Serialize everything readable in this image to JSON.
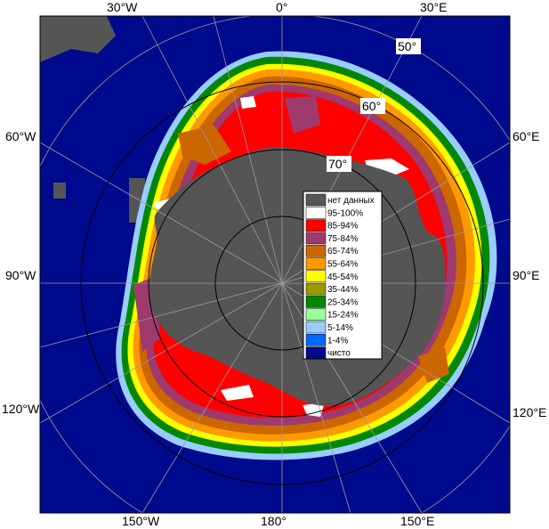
{
  "map": {
    "longitude_labels": {
      "top": [
        "30°W",
        "0°",
        "30°E"
      ],
      "bottom": [
        "150°W",
        "180°",
        "150°E"
      ],
      "left": [
        "60°W",
        "90°W",
        "120°W"
      ],
      "right": [
        "60°E",
        "90°E",
        "120°E"
      ]
    },
    "latitude_labels": [
      "50°",
      "60°",
      "70°"
    ],
    "colors": {
      "ocean": "#000a8c",
      "land": "#555555",
      "grid": "#9a9a9a",
      "circles": "#000000"
    }
  },
  "legend": {
    "items": [
      {
        "label": "нет данных",
        "color": "#555555"
      },
      {
        "label": "95-100%",
        "color": "#ffffff"
      },
      {
        "label": "85-94%",
        "color": "#ff0000"
      },
      {
        "label": "75-84%",
        "color": "#9e3a6e"
      },
      {
        "label": "65-74%",
        "color": "#cc6600"
      },
      {
        "label": "55-64%",
        "color": "#ff9900"
      },
      {
        "label": "45-54%",
        "color": "#ffff00"
      },
      {
        "label": "35-44%",
        "color": "#999900"
      },
      {
        "label": "25-34%",
        "color": "#008800"
      },
      {
        "label": "15-24%",
        "color": "#99ff99"
      },
      {
        "label": "5-14%",
        "color": "#99ccff"
      },
      {
        "label": "1-4%",
        "color": "#0066ff"
      },
      {
        "label": "чисто",
        "color": "#000a8c"
      }
    ]
  }
}
